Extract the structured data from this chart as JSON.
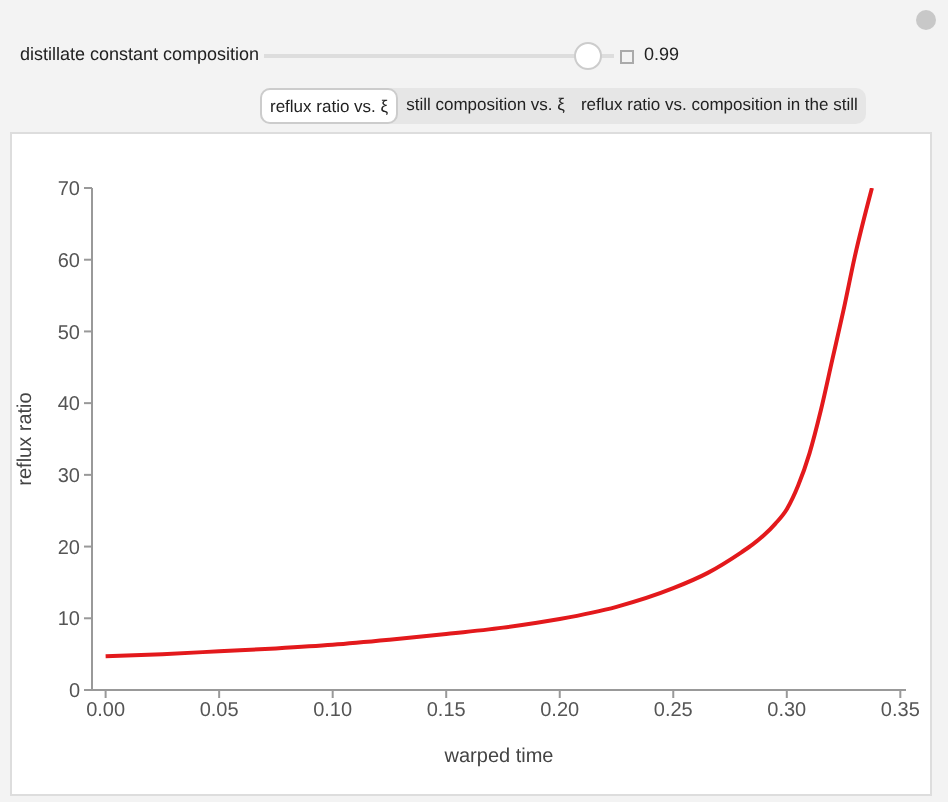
{
  "chart_data": {
    "type": "line",
    "xlabel": "warped time",
    "ylabel": "reflux ratio",
    "annotations": [
      "distillate constant composition",
      "0.99",
      "reflux ratio vs. ξ",
      "still composition vs. ξ",
      "reflux ratio vs. composition in the still"
    ],
    "x": [
      0,
      0.025,
      0.05,
      0.075,
      0.1,
      0.125,
      0.15,
      0.175,
      0.2,
      0.225,
      0.25,
      0.265,
      0.28,
      0.285,
      0.29,
      0.295,
      0.3,
      0.305,
      0.31,
      0.315,
      0.32,
      0.325,
      0.33,
      0.3375
    ],
    "series": [
      {
        "color": "#e3191c",
        "values": [
          4.7,
          5.0,
          5.4,
          5.8,
          6.3,
          7.0,
          7.8,
          8.7,
          9.9,
          11.6,
          14.2,
          16.3,
          19.2,
          20.3,
          21.6,
          23.2,
          25.2,
          28.5,
          33,
          39,
          46,
          53,
          60.5,
          70
        ]
      }
    ],
    "xlim": [
      -0.006,
      0.3525
    ],
    "xticks": [
      {
        "value": 0,
        "label": "0.00"
      },
      {
        "value": 0.05,
        "label": "0.05"
      },
      {
        "value": 0.1,
        "label": "0.10"
      },
      {
        "value": 0.15,
        "label": "0.15"
      },
      {
        "value": 0.2,
        "label": "0.20"
      },
      {
        "value": 0.25,
        "label": "0.25"
      },
      {
        "value": 0.3,
        "label": "0.30"
      },
      {
        "value": 0.35,
        "label": "0.35"
      }
    ],
    "ylim": [
      0,
      70
    ],
    "yticks": [
      0,
      10,
      20,
      30,
      40,
      50,
      60,
      70
    ],
    "grid": false,
    "legend": false,
    "marker": "none",
    "line_style": "solid"
  }
}
